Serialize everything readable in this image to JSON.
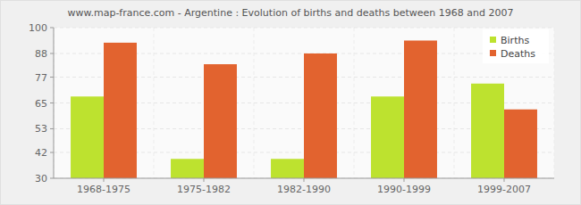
{
  "chart_data": {
    "type": "bar",
    "title": "www.map-france.com - Argentine : Evolution of births and deaths between 1968 and 2007",
    "categories": [
      "1968-1975",
      "1975-1982",
      "1982-1990",
      "1990-1999",
      "1999-2007"
    ],
    "series": [
      {
        "name": "Births",
        "color": "#bde22f",
        "values": [
          68,
          39,
          39,
          68,
          74
        ]
      },
      {
        "name": "Deaths",
        "color": "#e2632f",
        "values": [
          93,
          83,
          88,
          94,
          62
        ]
      }
    ],
    "ylim": [
      30,
      100
    ],
    "yticks": [
      30,
      42,
      53,
      65,
      77,
      88,
      100
    ],
    "grid": true,
    "legend": "upper right"
  }
}
